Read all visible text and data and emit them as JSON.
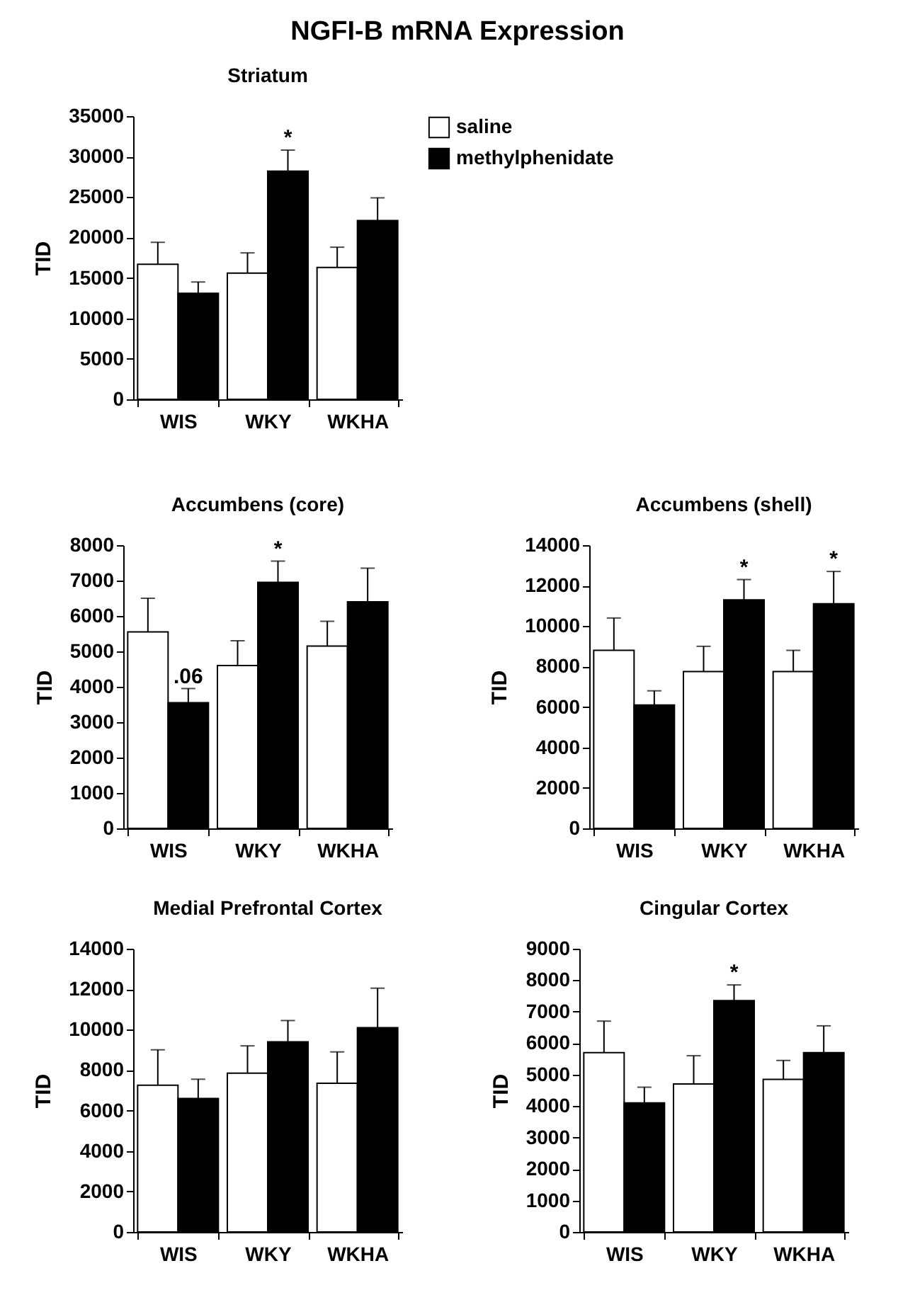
{
  "chart_data": [
    {
      "type": "bar",
      "title": "NGFI-B mRNA Expression",
      "subtitle": "Striatum",
      "ylabel": "TID",
      "categories": [
        "WIS",
        "WKY",
        "WKHA"
      ],
      "legend": "right",
      "grid": false,
      "ylim": [
        0,
        35000
      ],
      "yticks": [
        0,
        5000,
        10000,
        15000,
        20000,
        25000,
        30000,
        35000
      ],
      "series": [
        {
          "name": "saline",
          "color": "#ffffff",
          "values": [
            16700,
            15600,
            16300
          ],
          "errors": [
            [
              16700,
              19400
            ],
            [
              15600,
              18100
            ],
            [
              16300,
              18800
            ]
          ]
        },
        {
          "name": "methylphenidate",
          "color": "#000000",
          "values": [
            13100,
            28200,
            22100
          ],
          "errors": [
            [
              13100,
              14500
            ],
            [
              28200,
              30800
            ],
            [
              22100,
              24900
            ]
          ]
        }
      ],
      "annotations": [
        "*"
      ]
    },
    {
      "type": "bar",
      "title": "Accumbens (core)",
      "ylabel": "TID",
      "categories": [
        "WIS",
        "WKY",
        "WKHA"
      ],
      "grid": false,
      "ylim": [
        0,
        8000
      ],
      "yticks": [
        0,
        1000,
        2000,
        3000,
        4000,
        5000,
        6000,
        7000,
        8000
      ],
      "series": [
        {
          "color": "#ffffff",
          "values": [
            5550,
            4600,
            5150
          ],
          "errors": [
            [
              5550,
              6500
            ],
            [
              4600,
              5300
            ],
            [
              5150,
              5850
            ]
          ]
        },
        {
          "color": "#000000",
          "values": [
            3550,
            6950,
            6400
          ],
          "errors": [
            [
              3550,
              3950
            ],
            [
              6950,
              7550
            ],
            [
              6400,
              7350
            ]
          ]
        }
      ],
      "annotations": [
        "*",
        ".06"
      ]
    },
    {
      "type": "bar",
      "title": "Accumbens (shell)",
      "ylabel": "TID",
      "categories": [
        "WIS",
        "WKY",
        "WKHA"
      ],
      "grid": false,
      "ylim": [
        0,
        14000
      ],
      "yticks": [
        0,
        2000,
        4000,
        6000,
        8000,
        10000,
        12000,
        14000
      ],
      "series": [
        {
          "color": "#ffffff",
          "values": [
            8800,
            7750,
            7750
          ],
          "errors": [
            [
              8800,
              10400
            ],
            [
              7750,
              9000
            ],
            [
              7750,
              8800
            ]
          ]
        },
        {
          "color": "#000000",
          "values": [
            6100,
            11300,
            11100
          ],
          "errors": [
            [
              6100,
              6800
            ],
            [
              11300,
              12300
            ],
            [
              11100,
              12700
            ]
          ]
        }
      ],
      "annotations": [
        "*",
        "*"
      ]
    },
    {
      "type": "bar",
      "title": "Medial Prefrontal Cortex",
      "ylabel": "TID",
      "categories": [
        "WIS",
        "WKY",
        "WKHA"
      ],
      "grid": false,
      "ylim": [
        0,
        14000
      ],
      "yticks": [
        0,
        2000,
        4000,
        6000,
        8000,
        10000,
        12000,
        14000
      ],
      "series": [
        {
          "color": "#ffffff",
          "values": [
            7250,
            7850,
            7350
          ],
          "errors": [
            [
              7250,
              9000
            ],
            [
              7850,
              9200
            ],
            [
              7350,
              8900
            ]
          ]
        },
        {
          "color": "#000000",
          "values": [
            6600,
            9400,
            10100
          ],
          "errors": [
            [
              6600,
              7550
            ],
            [
              9400,
              10450
            ],
            [
              10100,
              12050
            ]
          ]
        }
      ]
    },
    {
      "type": "bar",
      "title": "Cingular Cortex",
      "ylabel": "TID",
      "categories": [
        "WIS",
        "WKY",
        "WKHA"
      ],
      "grid": false,
      "ylim": [
        0,
        9000
      ],
      "yticks": [
        0,
        1000,
        2000,
        3000,
        4000,
        5000,
        6000,
        7000,
        8000,
        9000
      ],
      "series": [
        {
          "color": "#ffffff",
          "values": [
            5700,
            4700,
            4850
          ],
          "errors": [
            [
              5700,
              6700
            ],
            [
              4700,
              5600
            ],
            [
              4850,
              5450
            ]
          ]
        },
        {
          "color": "#000000",
          "values": [
            4100,
            7350,
            5700
          ],
          "errors": [
            [
              4100,
              4600
            ],
            [
              7350,
              7850
            ],
            [
              5700,
              6550
            ]
          ]
        }
      ],
      "annotations": [
        "*"
      ]
    }
  ]
}
